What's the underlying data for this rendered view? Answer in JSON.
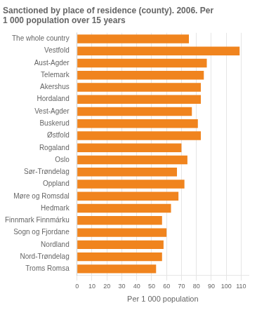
{
  "chart_data": {
    "type": "bar",
    "orientation": "horizontal",
    "title": "Sanctioned by place of residence (county). 2006. Per\n1 000 population over 15 years",
    "x_label": "Per 1 000 population",
    "categories": [
      "The whole country",
      "Vestfold",
      "Aust-Agder",
      "Telemark",
      "Akershus",
      "Hordaland",
      "Vest-Agder",
      "Buskerud",
      "Østfold",
      "Rogaland",
      "Oslo",
      "Sør-Trøndelag",
      "Oppland",
      "Møre og Romsdal",
      "Hedmark",
      "Finnmark Finnmárku",
      "Sogn og Fjordane",
      "Nordland",
      "Nord-Trøndelag",
      "Troms Romsa"
    ],
    "values": [
      75,
      109,
      87,
      85,
      83,
      83,
      77,
      81,
      83,
      70,
      74,
      67,
      72,
      68,
      63,
      57,
      60,
      58,
      57,
      53
    ],
    "color": "#f0841e",
    "xlim": [
      0,
      115
    ],
    "xticks": [
      0,
      10,
      20,
      30,
      40,
      50,
      60,
      70,
      80,
      90,
      100,
      110
    ],
    "grid": true
  }
}
